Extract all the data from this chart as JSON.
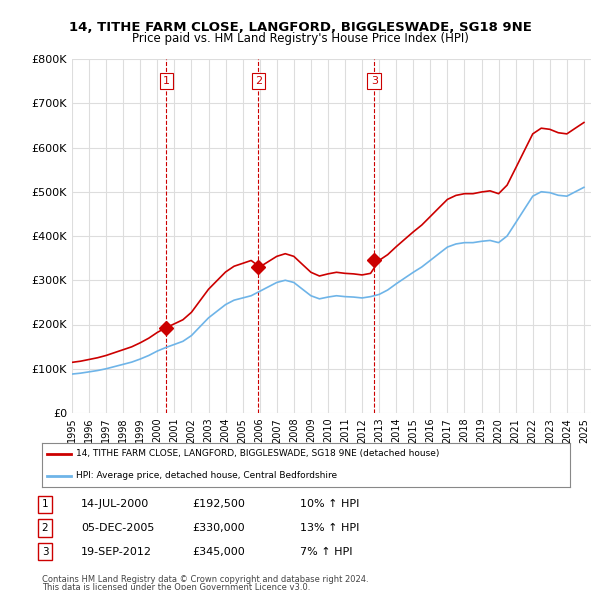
{
  "title_line1": "14, TITHE FARM CLOSE, LANGFORD, BIGGLESWADE, SG18 9NE",
  "title_line2": "Price paid vs. HM Land Registry's House Price Index (HPI)",
  "ylabel": "",
  "xlabel": "",
  "ylim": [
    0,
    800000
  ],
  "yticks": [
    0,
    100000,
    200000,
    300000,
    400000,
    500000,
    600000,
    700000,
    800000
  ],
  "ytick_labels": [
    "£0",
    "£100K",
    "£200K",
    "£300K",
    "£400K",
    "£500K",
    "£600K",
    "£700K",
    "£800K"
  ],
  "sale_dates": [
    "2000-07-14",
    "2005-12-05",
    "2012-09-19"
  ],
  "sale_prices": [
    192500,
    330000,
    345000
  ],
  "sale_labels": [
    "1",
    "2",
    "3"
  ],
  "legend_line1": "14, TITHE FARM CLOSE, LANGFORD, BIGGLESWADE, SG18 9NE (detached house)",
  "legend_line2": "HPI: Average price, detached house, Central Bedfordshire",
  "table_rows": [
    [
      "1",
      "14-JUL-2000",
      "£192,500",
      "10% ↑ HPI"
    ],
    [
      "2",
      "05-DEC-2005",
      "£330,000",
      "13% ↑ HPI"
    ],
    [
      "3",
      "19-SEP-2012",
      "£345,000",
      "7% ↑ HPI"
    ]
  ],
  "footer_line1": "Contains HM Land Registry data © Crown copyright and database right 2024.",
  "footer_line2": "This data is licensed under the Open Government Licence v3.0.",
  "hpi_color": "#6eb4e8",
  "price_color": "#cc0000",
  "vline_color": "#cc0000",
  "background_color": "#ffffff",
  "grid_color": "#dddddd"
}
